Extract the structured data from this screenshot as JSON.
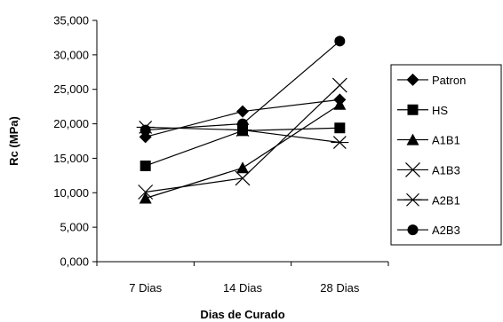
{
  "chart_data": {
    "type": "line",
    "title": "",
    "xlabel": "Dias de Curado",
    "ylabel": "Rc (MPa)",
    "categories": [
      "7 Dias",
      "14 Dias",
      "28 Dias"
    ],
    "ylim": [
      0,
      35000
    ],
    "yticks": [
      0,
      5000,
      10000,
      15000,
      20000,
      25000,
      30000,
      35000
    ],
    "ytick_labels": [
      "0,000",
      "5,000",
      "10,000",
      "15,000",
      "20,000",
      "25,000",
      "30,000",
      "35,000"
    ],
    "grid": false,
    "legend_position": "right",
    "series": [
      {
        "name": "Patron",
        "marker": "diamond",
        "values": [
          18100,
          21800,
          23500
        ]
      },
      {
        "name": "HS",
        "marker": "square",
        "values": [
          13900,
          19000,
          19400
        ]
      },
      {
        "name": "A1B1",
        "marker": "triangle",
        "values": [
          9200,
          13600,
          22800
        ]
      },
      {
        "name": "A1B3",
        "marker": "x",
        "values": [
          10100,
          12100,
          25600
        ]
      },
      {
        "name": "A2B1",
        "marker": "asterisk",
        "values": [
          19500,
          19100,
          17300
        ]
      },
      {
        "name": "A2B3",
        "marker": "circle",
        "values": [
          19100,
          20000,
          32000
        ]
      }
    ],
    "line_color": "#000000"
  }
}
